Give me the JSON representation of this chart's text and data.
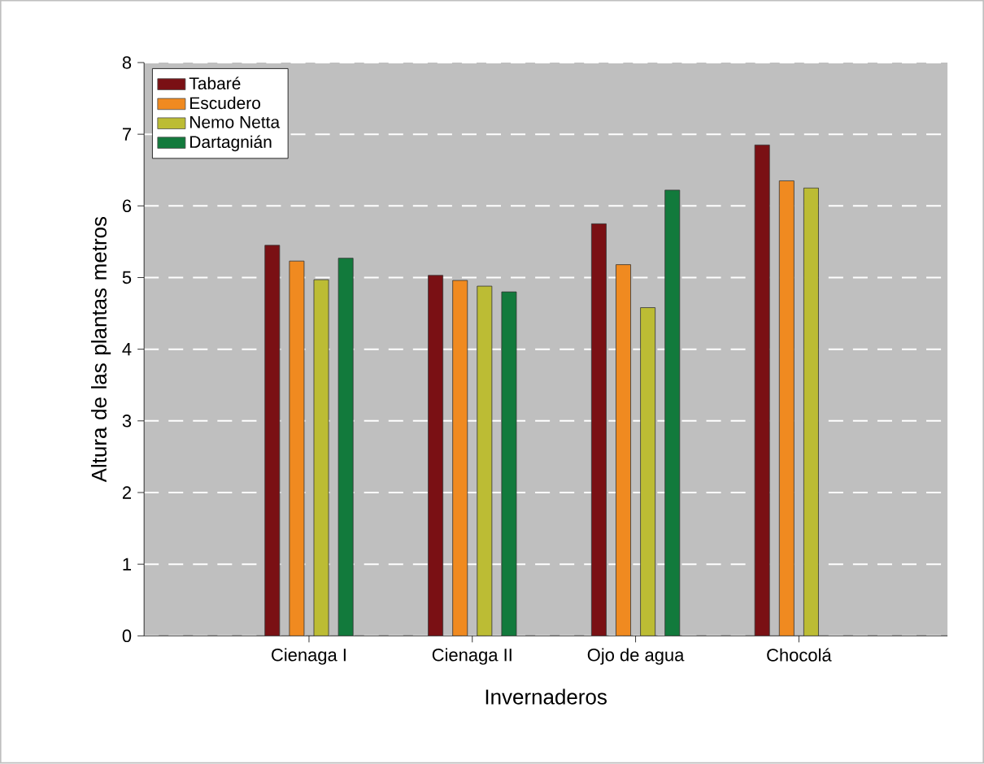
{
  "chart_data": {
    "type": "bar",
    "xlabel": "Invernaderos",
    "ylabel": "Altura de las plantas metros",
    "categories": [
      "Cienaga I",
      "Cienaga II",
      "Ojo de agua",
      "Chocolá"
    ],
    "series": [
      {
        "name": "Tabaré",
        "color": "#7a1014",
        "values": [
          5.45,
          5.03,
          5.75,
          6.85
        ]
      },
      {
        "name": "Escudero",
        "color": "#f08a20",
        "values": [
          5.23,
          4.96,
          5.18,
          6.35
        ]
      },
      {
        "name": "Nemo Netta",
        "color": "#bcbc34",
        "values": [
          4.97,
          4.88,
          4.58,
          6.25
        ]
      },
      {
        "name": "Dartagnián",
        "color": "#127a3c",
        "values": [
          5.27,
          4.8,
          6.22,
          null
        ]
      }
    ],
    "ylim": [
      0,
      8
    ],
    "yticks": [
      0,
      1,
      2,
      3,
      4,
      5,
      6,
      7,
      8
    ],
    "grid": "y",
    "legend": "top left"
  }
}
